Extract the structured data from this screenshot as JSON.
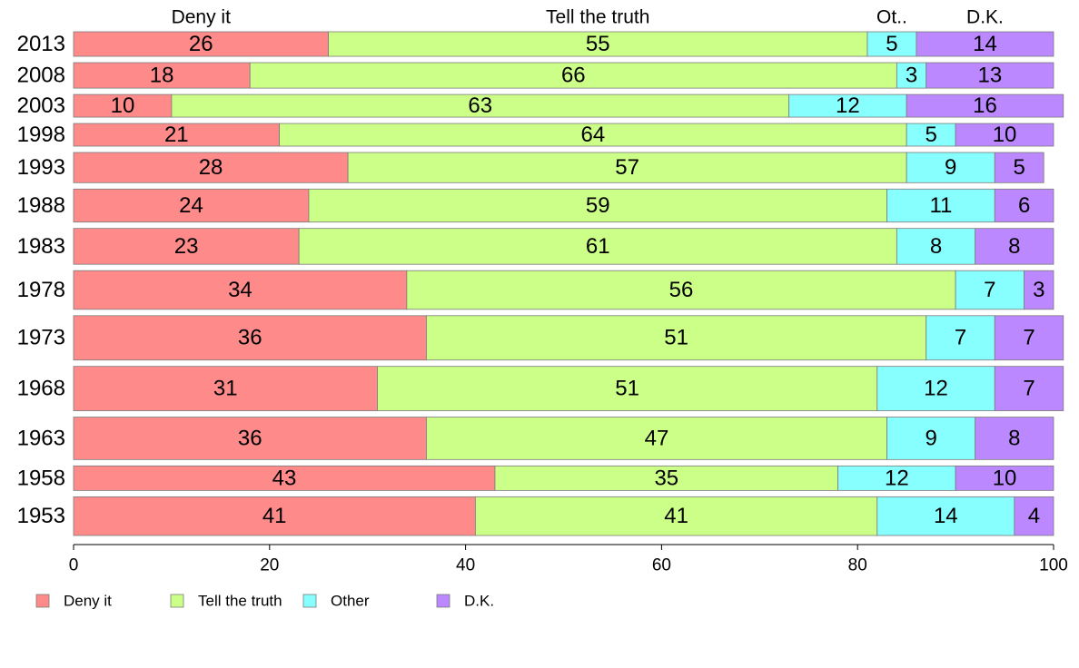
{
  "chart_data": {
    "type": "bar",
    "orientation": "horizontal",
    "stacked": true,
    "categories": [
      "2013",
      "2008",
      "2003",
      "1998",
      "1993",
      "1988",
      "1983",
      "1978",
      "1973",
      "1968",
      "1963",
      "1958",
      "1953"
    ],
    "bar_weights": [
      26,
      27,
      24,
      24,
      32,
      35,
      38,
      41,
      47,
      47,
      45,
      26,
      41
    ],
    "series": [
      {
        "name": "Deny it",
        "short_label": "Deny it",
        "color": "#ff8a8a",
        "values": [
          26,
          18,
          10,
          21,
          28,
          24,
          23,
          34,
          36,
          31,
          36,
          43,
          41
        ]
      },
      {
        "name": "Tell the truth",
        "short_label": "Tell the truth",
        "color": "#ccff88",
        "values": [
          55,
          66,
          63,
          64,
          57,
          59,
          61,
          56,
          51,
          51,
          47,
          35,
          41
        ]
      },
      {
        "name": "Other",
        "short_label": "Ot..",
        "color": "#88ffff",
        "values": [
          5,
          3,
          12,
          5,
          9,
          11,
          8,
          7,
          7,
          12,
          9,
          12,
          14
        ]
      },
      {
        "name": "D.K.",
        "short_label": "D.K.",
        "color": "#bb88ff",
        "values": [
          14,
          13,
          16,
          10,
          5,
          6,
          8,
          3,
          7,
          7,
          8,
          10,
          4
        ]
      }
    ],
    "xlim": [
      0,
      100
    ],
    "xticks": [
      0,
      20,
      40,
      60,
      80,
      100
    ],
    "title": "",
    "xlabel": "",
    "ylabel": "",
    "grid": false,
    "legend": "bottom-left"
  }
}
